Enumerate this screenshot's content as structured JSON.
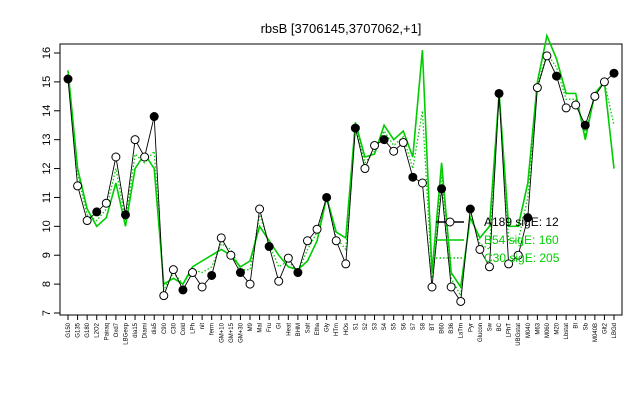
{
  "chart_data": {
    "type": "line",
    "title": "rbsB [3706145,3707062,+1]",
    "xlabel": "",
    "ylabel": "",
    "ylim": [
      7,
      16
    ],
    "yticks": [
      7,
      8,
      9,
      10,
      11,
      12,
      13,
      14,
      15,
      16
    ],
    "grid": false,
    "legend_position": "center-right",
    "categories": [
      "G150",
      "G135",
      "G180",
      "L2O2",
      "Pairaq",
      "Oxd7",
      "LBGexp",
      "dia15",
      "Diami",
      "dia5",
      "C90",
      "C30",
      "Cold",
      "LPh",
      "nit",
      "ferm",
      "GM+10",
      "GM+15",
      "GM+30",
      "M9",
      "Mal",
      "Fru",
      "Gl",
      "Heat",
      "BHM",
      "Salt",
      "Etha",
      "Gly",
      "HTm",
      "HOs",
      "S1",
      "S2",
      "S3",
      "S4",
      "S5",
      "S6",
      "S7",
      "S8",
      "BT",
      "B60",
      "B36",
      "LaTrn",
      "Pyr",
      "Glucon",
      "Sw",
      "BC",
      "LPhT",
      "UBGstat",
      "M040",
      "M63",
      "M060",
      "M20",
      "Lbstat",
      "BI",
      "Sb",
      "M040B",
      "Glt2",
      "LBGd"
    ],
    "series": [
      {
        "name": "A189 sigE: 12",
        "color": "#000000",
        "style": "points-line",
        "values": [
          15.1,
          11.4,
          10.2,
          10.5,
          10.8,
          12.4,
          10.4,
          13.0,
          12.4,
          13.8,
          7.6,
          8.5,
          7.8,
          8.4,
          7.9,
          8.3,
          9.6,
          9.0,
          8.4,
          8.0,
          10.6,
          9.3,
          8.1,
          8.9,
          8.4,
          9.5,
          9.9,
          11.0,
          9.5,
          8.7,
          13.4,
          12.0,
          12.8,
          13.0,
          12.6,
          12.9,
          11.7,
          11.5,
          7.9,
          11.3,
          7.9,
          7.4,
          10.6,
          9.2,
          8.6,
          14.6,
          8.7,
          9.0,
          10.3,
          14.8,
          15.9,
          15.2,
          14.1,
          14.2,
          13.5,
          14.5,
          15.0,
          15.3
        ]
      },
      {
        "name": "B54 sigE: 160",
        "color": "#00cc00",
        "style": "line",
        "values": [
          15.4,
          12.0,
          10.6,
          10.0,
          10.3,
          11.5,
          10.0,
          12.0,
          12.5,
          12.0,
          8.0,
          8.2,
          8.0,
          8.6,
          8.8,
          9.0,
          9.2,
          9.0,
          8.6,
          8.8,
          10.0,
          9.5,
          9.0,
          8.6,
          8.5,
          8.8,
          9.5,
          11.0,
          9.8,
          9.6,
          13.6,
          12.4,
          12.5,
          13.5,
          13.0,
          13.3,
          12.4,
          16.1,
          8.4,
          12.2,
          8.4,
          7.9,
          10.3,
          9.6,
          10.0,
          14.6,
          10.0,
          10.0,
          11.5,
          15.0,
          16.6,
          15.8,
          14.6,
          14.6,
          13.0,
          14.6,
          15.0,
          12.0
        ]
      },
      {
        "name": "C30 sigE: 205",
        "color": "#00cc00",
        "style": "dotted",
        "values": [
          15.2,
          11.8,
          10.4,
          10.2,
          10.6,
          12.0,
          10.2,
          12.5,
          12.2,
          12.6,
          7.8,
          8.4,
          8.0,
          8.5,
          8.4,
          8.6,
          9.4,
          9.2,
          8.5,
          8.5,
          10.4,
          9.4,
          8.6,
          8.8,
          8.4,
          9.2,
          9.8,
          11.0,
          9.6,
          9.2,
          13.5,
          12.2,
          12.6,
          13.3,
          12.8,
          13.1,
          12.0,
          14.0,
          8.2,
          11.8,
          8.2,
          7.6,
          10.5,
          9.4,
          9.2,
          14.6,
          9.5,
          9.5,
          11.0,
          14.9,
          16.0,
          15.5,
          14.4,
          14.4,
          13.2,
          14.5,
          15.0,
          13.5
        ]
      }
    ]
  }
}
